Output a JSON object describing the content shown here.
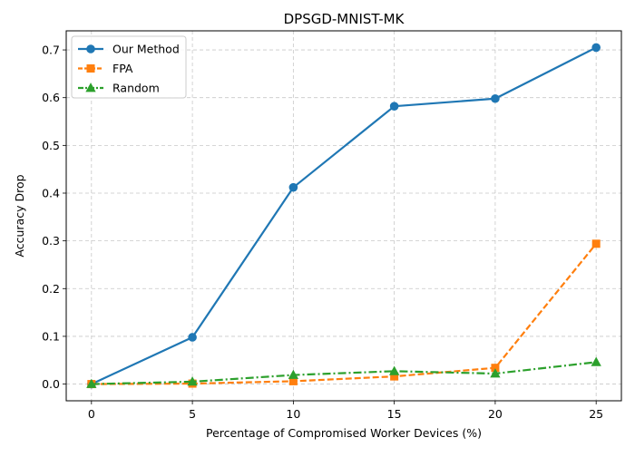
{
  "chart_data": {
    "type": "line",
    "title": "DPSGD-MNIST-MK",
    "xlabel": "Percentage of Compromised Worker Devices (%)",
    "ylabel": "Accuracy Drop",
    "x": [
      0,
      5,
      10,
      15,
      20,
      25
    ],
    "xlim": [
      -1.25,
      26.25
    ],
    "ylim": [
      -0.035,
      0.74
    ],
    "xticks": [
      0,
      5,
      10,
      15,
      20,
      25
    ],
    "yticks": [
      0.0,
      0.1,
      0.2,
      0.3,
      0.4,
      0.5,
      0.6,
      0.7
    ],
    "xtick_labels": [
      "0",
      "5",
      "10",
      "15",
      "20",
      "25"
    ],
    "ytick_labels": [
      "0.0",
      "0.1",
      "0.2",
      "0.3",
      "0.4",
      "0.5",
      "0.6",
      "0.7"
    ],
    "grid": true,
    "legend_position": "upper-left",
    "series": [
      {
        "name": "Our Method",
        "values": [
          0.0,
          0.098,
          0.412,
          0.582,
          0.598,
          0.705
        ],
        "color": "#1f77b4",
        "marker": "circle",
        "linestyle": "solid"
      },
      {
        "name": "FPA",
        "values": [
          0.0,
          0.001,
          0.006,
          0.016,
          0.034,
          0.294
        ],
        "color": "#ff7f0e",
        "marker": "square",
        "linestyle": "dashed"
      },
      {
        "name": "Random",
        "values": [
          0.0,
          0.005,
          0.019,
          0.027,
          0.022,
          0.046
        ],
        "color": "#2ca02c",
        "marker": "triangle",
        "linestyle": "dashdot"
      }
    ]
  }
}
